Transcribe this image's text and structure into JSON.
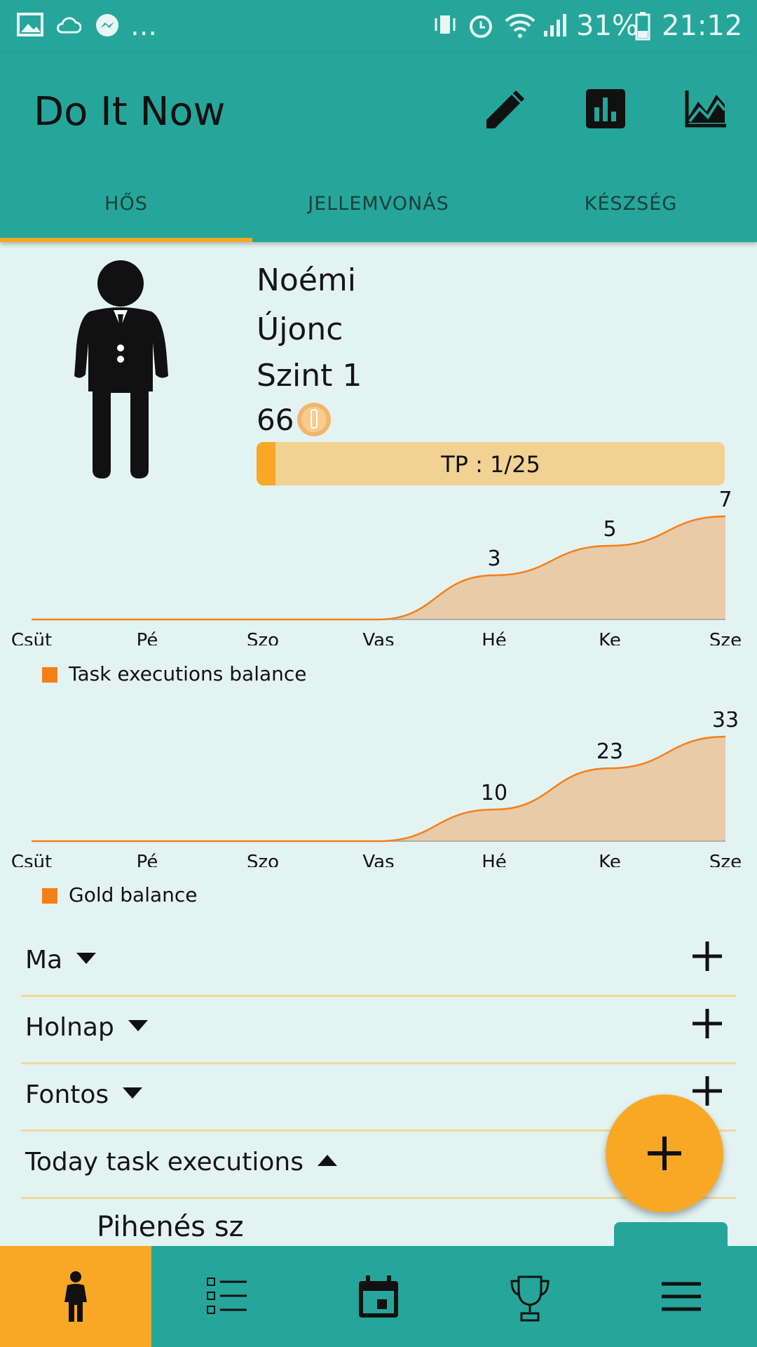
{
  "status_bar": {
    "battery": "31%",
    "time": "21:12",
    "more": "..."
  },
  "app_bar": {
    "title": "Do It Now",
    "actions": [
      "edit-icon",
      "bar-chart-icon",
      "line-chart-icon"
    ],
    "tabs": [
      {
        "label": "HŐS",
        "active": true
      },
      {
        "label": "JELLEMVONÁS",
        "active": false
      },
      {
        "label": "KÉSZSÉG",
        "active": false
      }
    ]
  },
  "profile": {
    "name": "Noémi",
    "rank": "Újonc",
    "level": "Szint 1",
    "gold": "66",
    "tp_label": "TP : 1/25",
    "tp_progress": 0.04
  },
  "chart_data": [
    {
      "type": "area",
      "categories": [
        "Csüt",
        "Pé",
        "Szo",
        "Vas",
        "Hé",
        "Ke",
        "Sze"
      ],
      "series": [
        {
          "name": "Task executions balance",
          "values": [
            0,
            0,
            0,
            0,
            3,
            5,
            7
          ]
        }
      ],
      "data_labels": [
        "",
        "",
        "",
        "",
        "3",
        "5",
        "7"
      ],
      "ylim": [
        0,
        7
      ],
      "color": "#f57f17",
      "fill": "#e8cba8",
      "legend": "bottom-left"
    },
    {
      "type": "area",
      "categories": [
        "Csüt",
        "Pé",
        "Szo",
        "Vas",
        "Hé",
        "Ke",
        "Sze"
      ],
      "series": [
        {
          "name": "Gold balance",
          "values": [
            0,
            0,
            0,
            0,
            10,
            23,
            33
          ]
        }
      ],
      "data_labels": [
        "",
        "",
        "",
        "",
        "10",
        "23",
        "33"
      ],
      "ylim": [
        0,
        33
      ],
      "color": "#f57f17",
      "fill": "#e8cba8",
      "legend": "bottom-left"
    }
  ],
  "sections": [
    {
      "label": "Ma",
      "expanded": false
    },
    {
      "label": "Holnap",
      "expanded": false
    },
    {
      "label": "Fontos",
      "expanded": false
    },
    {
      "label": "Today task executions",
      "expanded": true
    }
  ],
  "task_item": {
    "label": "Pihenés sz"
  },
  "bottom_nav": [
    {
      "icon": "hero-icon",
      "active": true
    },
    {
      "icon": "task-list-icon",
      "active": false
    },
    {
      "icon": "calendar-icon",
      "active": false
    },
    {
      "icon": "trophy-icon",
      "active": false
    },
    {
      "icon": "menu-icon",
      "active": false
    }
  ],
  "colors": {
    "primary": "#26a69a",
    "accent": "#f9a825",
    "background": "#e3f3f2"
  }
}
